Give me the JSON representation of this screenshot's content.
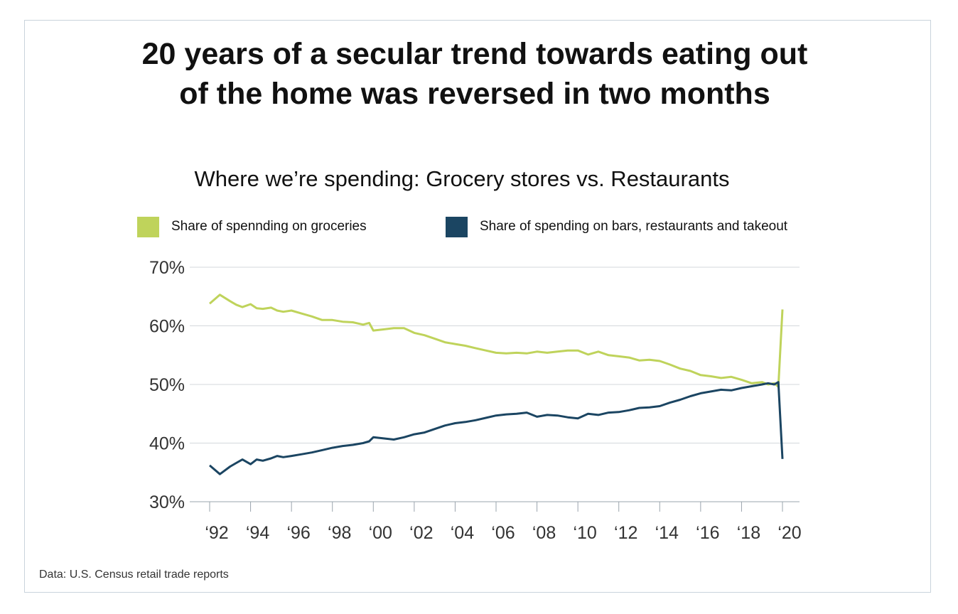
{
  "title_lines": [
    "20 years of a secular trend towards eating out",
    "of the home was reversed in two months"
  ],
  "source": "Data: U.S. Census retail trade reports",
  "chart_data": {
    "type": "line",
    "title": "Where we’re spending: Grocery stores vs. Restaurants",
    "xlabel": "",
    "ylabel": "",
    "ylim": [
      30,
      70
    ],
    "xlim": [
      1992,
      2020
    ],
    "yticks": [
      30,
      40,
      50,
      60,
      70
    ],
    "ytick_labels": [
      "30%",
      "40%",
      "50%",
      "60%",
      "70%"
    ],
    "xticks": [
      1992,
      1994,
      1996,
      1998,
      2000,
      2002,
      2004,
      2006,
      2008,
      2010,
      2012,
      2014,
      2016,
      2018,
      2020
    ],
    "xtick_labels": [
      "‘92",
      "‘94",
      "‘96",
      "‘98",
      "‘00",
      "‘02",
      "‘04",
      "‘06",
      "‘08",
      "‘10",
      "‘12",
      "‘14",
      "‘16",
      "‘18",
      "‘20"
    ],
    "grid": "horizontal",
    "legend_position": "top",
    "series": [
      {
        "name": "Share of spennding on groceries",
        "color": "#bfd35b",
        "x": [
          1992,
          1992.5,
          1993,
          1993.3,
          1993.6,
          1994,
          1994.3,
          1994.6,
          1995,
          1995.3,
          1995.6,
          1996,
          1996.5,
          1997,
          1997.5,
          1998,
          1998.5,
          1999,
          1999.5,
          1999.8,
          2000,
          2000.5,
          2001,
          2001.5,
          2002,
          2002.5,
          2003,
          2003.5,
          2004,
          2004.5,
          2005,
          2005.5,
          2006,
          2006.5,
          2007,
          2007.5,
          2008,
          2008.5,
          2009,
          2009.5,
          2010,
          2010.5,
          2011,
          2011.5,
          2012,
          2012.5,
          2013,
          2013.5,
          2014,
          2014.5,
          2015,
          2015.5,
          2016,
          2016.5,
          2017,
          2017.5,
          2018,
          2018.5,
          2019,
          2019.3,
          2019.6,
          2019.8,
          2020
        ],
        "values": [
          63.8,
          65.3,
          64.2,
          63.6,
          63.2,
          63.7,
          63.0,
          62.9,
          63.1,
          62.6,
          62.4,
          62.6,
          62.1,
          61.6,
          61.0,
          61.0,
          60.7,
          60.6,
          60.2,
          60.5,
          59.2,
          59.4,
          59.6,
          59.6,
          58.8,
          58.4,
          57.8,
          57.2,
          56.9,
          56.6,
          56.2,
          55.8,
          55.4,
          55.3,
          55.4,
          55.3,
          55.6,
          55.4,
          55.6,
          55.8,
          55.8,
          55.1,
          55.6,
          55.0,
          54.8,
          54.6,
          54.1,
          54.2,
          54.0,
          53.4,
          52.7,
          52.3,
          51.6,
          51.4,
          51.1,
          51.3,
          50.8,
          50.2,
          50.4,
          50.0,
          50.2,
          49.6,
          62.8
        ]
      },
      {
        "name": "Share of spending on bars, restaurants and takeout",
        "color": "#1b4562",
        "x": [
          1992,
          1992.5,
          1993,
          1993.3,
          1993.6,
          1994,
          1994.3,
          1994.6,
          1995,
          1995.3,
          1995.6,
          1996,
          1996.5,
          1997,
          1997.5,
          1998,
          1998.5,
          1999,
          1999.5,
          1999.8,
          2000,
          2000.5,
          2001,
          2001.5,
          2002,
          2002.5,
          2003,
          2003.5,
          2004,
          2004.5,
          2005,
          2005.5,
          2006,
          2006.5,
          2007,
          2007.5,
          2008,
          2008.5,
          2009,
          2009.5,
          2010,
          2010.5,
          2011,
          2011.5,
          2012,
          2012.5,
          2013,
          2013.5,
          2014,
          2014.5,
          2015,
          2015.5,
          2016,
          2016.5,
          2017,
          2017.5,
          2018,
          2018.5,
          2019,
          2019.3,
          2019.6,
          2019.8,
          2020
        ],
        "values": [
          36.2,
          34.7,
          36.0,
          36.6,
          37.2,
          36.4,
          37.2,
          37.0,
          37.4,
          37.8,
          37.6,
          37.8,
          38.1,
          38.4,
          38.8,
          39.2,
          39.5,
          39.7,
          40.0,
          40.3,
          41.0,
          40.8,
          40.6,
          41.0,
          41.5,
          41.8,
          42.4,
          43.0,
          43.4,
          43.6,
          43.9,
          44.3,
          44.7,
          44.9,
          45.0,
          45.2,
          44.5,
          44.8,
          44.7,
          44.4,
          44.2,
          45.0,
          44.8,
          45.2,
          45.3,
          45.6,
          46.0,
          46.1,
          46.3,
          46.9,
          47.4,
          48.0,
          48.5,
          48.8,
          49.1,
          49.0,
          49.4,
          49.7,
          50.0,
          50.2,
          50.0,
          50.4,
          37.3
        ]
      }
    ]
  }
}
